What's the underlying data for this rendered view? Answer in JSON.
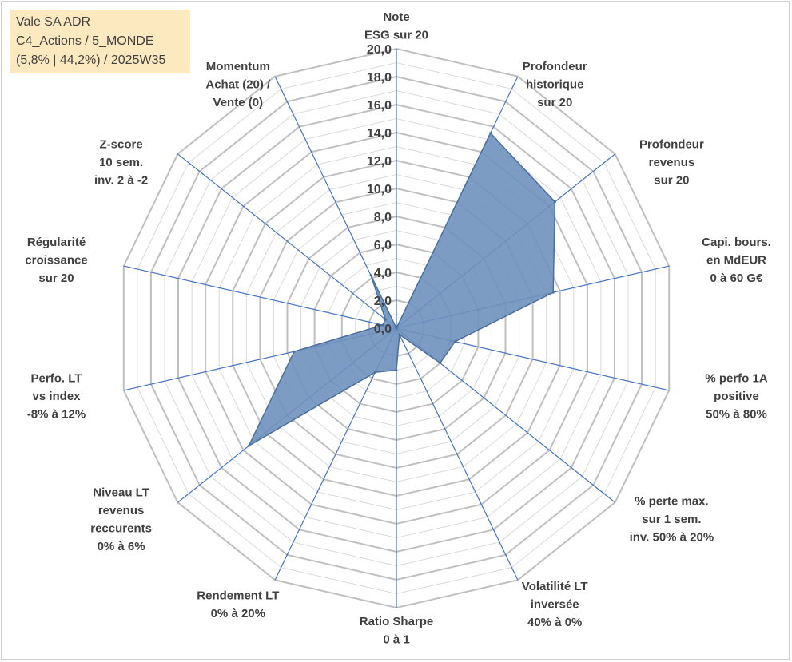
{
  "info": {
    "line1": "Vale SA ADR",
    "line2": "C4_Actions / 5_MONDE",
    "line3": "(5,8% | 44,2%) / 2025W35"
  },
  "chart_data": {
    "type": "radar",
    "rmin": 0,
    "rmax": 20,
    "ring_step": 1,
    "tick_step": 2,
    "tick_labels": [
      "0,0",
      "2,0",
      "4,0",
      "6,0",
      "8,0",
      "10,0",
      "12,0",
      "14,0",
      "16,0",
      "18,0",
      "20,0"
    ],
    "axes": [
      {
        "label": [
          "Note",
          "ESG sur 20"
        ],
        "value": 0
      },
      {
        "label": [
          "Profondeur",
          "historique",
          "sur 20"
        ],
        "value": 15.5
      },
      {
        "label": [
          "Profondeur",
          "revenus",
          "sur 20"
        ],
        "value": 14.5
      },
      {
        "label": [
          "Capi. bours.",
          "en MdEUR",
          "0 à 60 G€"
        ],
        "value": 11.5
      },
      {
        "label": [
          "% perfo 1A",
          "positive",
          "50% à 80%"
        ],
        "value": 4.3
      },
      {
        "label": [
          "% perte max.",
          "sur 1 sem.",
          "inv. 50% à 20%"
        ],
        "value": 4.0
      },
      {
        "label": [
          "Volatilité LT",
          "inversée",
          "40% à 0%"
        ],
        "value": 0.5
      },
      {
        "label": [
          "Ratio Sharpe",
          "0 à 1"
        ],
        "value": 3.0
      },
      {
        "label": [
          "Rendement LT",
          "0% à 20%"
        ],
        "value": 3.5
      },
      {
        "label": [
          "Niveau LT",
          "revenus",
          "reccurents",
          "0% à 6%"
        ],
        "value": 13.5
      },
      {
        "label": [
          "Perfo. LT",
          "vs index",
          "-8% à 12%"
        ],
        "value": 7.5
      },
      {
        "label": [
          "Régularité",
          "croissance",
          "sur 20"
        ],
        "value": 1.0
      },
      {
        "label": [
          "Z-score",
          "10 sem.",
          "inv. 2 à -2"
        ],
        "value": 1.0
      },
      {
        "label": [
          "Momentum",
          "Achat (20) /",
          "Vente (0)"
        ],
        "value": 4.2
      }
    ],
    "colors": {
      "fill": "#6e91bd",
      "outline": "#4a6fa0",
      "axis": "#4472c4",
      "grid_major": "#bfbfbf",
      "grid_minor": "#d9d9d9"
    }
  }
}
